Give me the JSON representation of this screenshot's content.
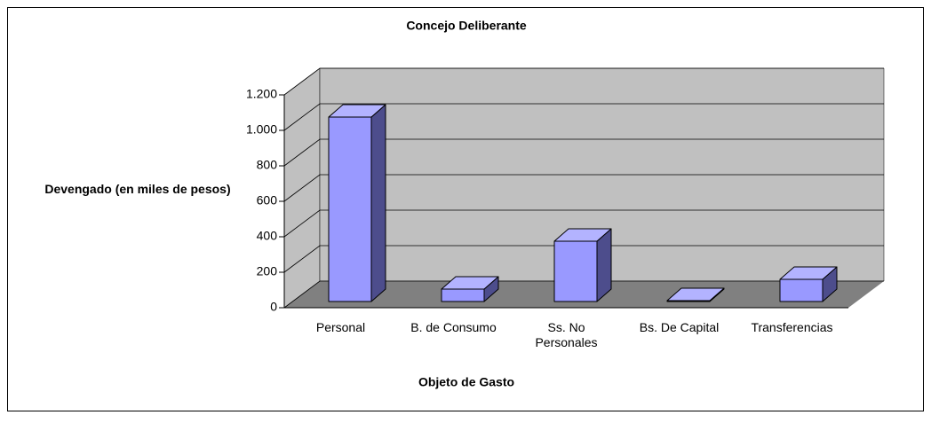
{
  "chart_data": {
    "type": "bar3d",
    "title": "Concejo Deliberante",
    "y_label": "Devengado (en miles de pesos)",
    "x_label": "Objeto de Gasto",
    "categories": [
      "Personal",
      "B. de Consumo",
      "Ss. No Personales",
      "Bs. De Capital",
      "Transferencias"
    ],
    "values": [
      1040,
      70,
      340,
      5,
      125
    ],
    "color": "#9999ff",
    "ylim": [
      0,
      1200
    ],
    "yticks": [
      0,
      200,
      400,
      600,
      800,
      {
        "value": 1000,
        "label": "1.000"
      },
      {
        "value": 1200,
        "label": "1.200"
      }
    ],
    "grid": true
  }
}
